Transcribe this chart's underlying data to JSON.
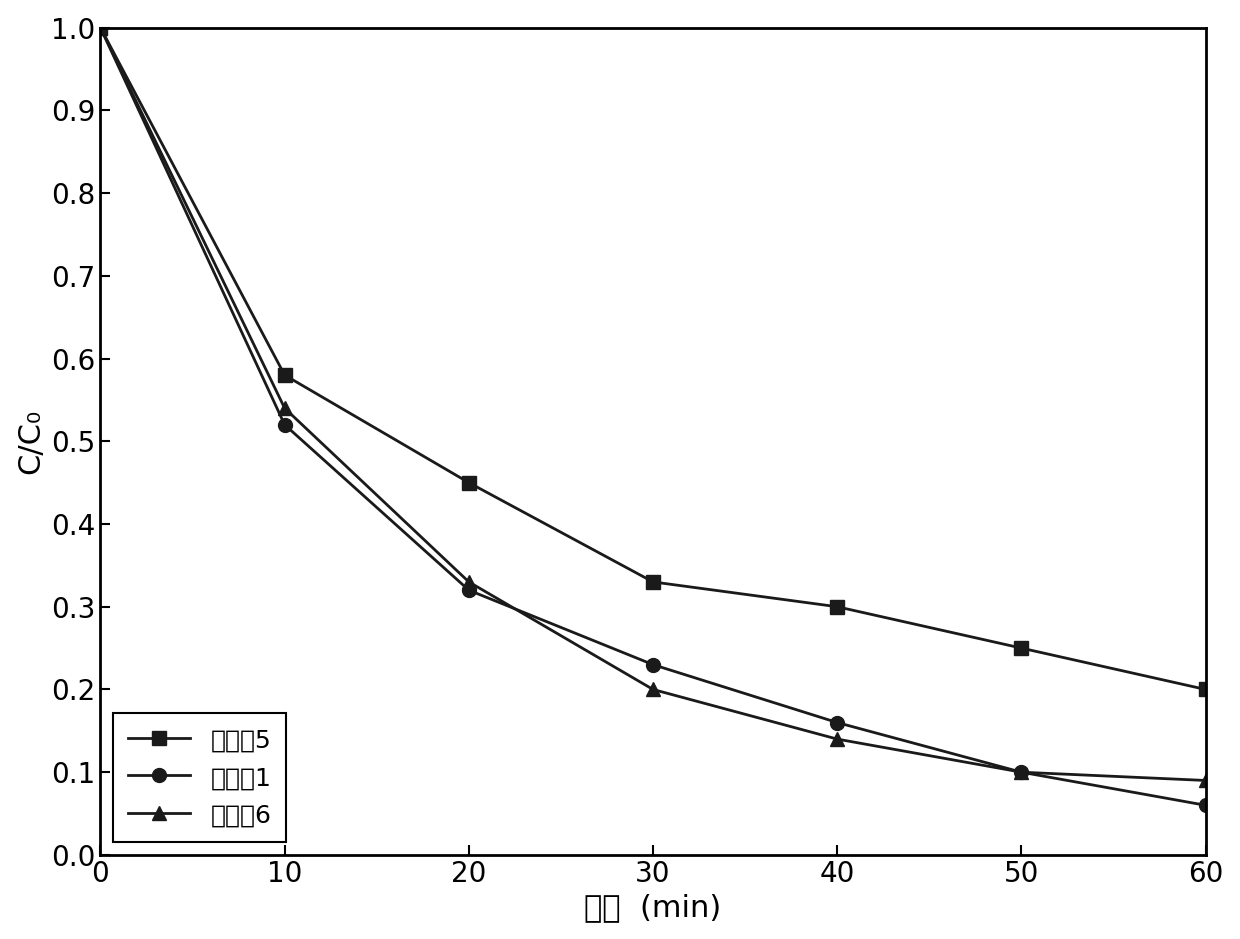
{
  "x": [
    0,
    10,
    20,
    30,
    40,
    50,
    60
  ],
  "series": [
    {
      "label": "实施例5",
      "y": [
        1.0,
        0.58,
        0.45,
        0.33,
        0.3,
        0.25,
        0.2
      ],
      "marker": "s",
      "color": "#1a1a1a"
    },
    {
      "label": "实施例1",
      "y": [
        1.0,
        0.52,
        0.32,
        0.23,
        0.16,
        0.1,
        0.06
      ],
      "marker": "o",
      "color": "#1a1a1a"
    },
    {
      "label": "实施例6",
      "y": [
        1.0,
        0.54,
        0.33,
        0.2,
        0.14,
        0.1,
        0.09
      ],
      "marker": "^",
      "color": "#1a1a1a"
    }
  ],
  "xlabel": "时间  (min)",
  "ylabel": "C/C₀",
  "xlim": [
    0,
    60
  ],
  "ylim": [
    0.0,
    1.0
  ],
  "xticks": [
    0,
    10,
    20,
    30,
    40,
    50,
    60
  ],
  "yticks": [
    0.0,
    0.1,
    0.2,
    0.3,
    0.4,
    0.5,
    0.6,
    0.7,
    0.8,
    0.9,
    1.0
  ],
  "background_color": "#ffffff",
  "linewidth": 2.0,
  "markersize": 10,
  "legend_fontsize": 18,
  "axis_fontsize": 22,
  "tick_fontsize": 20
}
